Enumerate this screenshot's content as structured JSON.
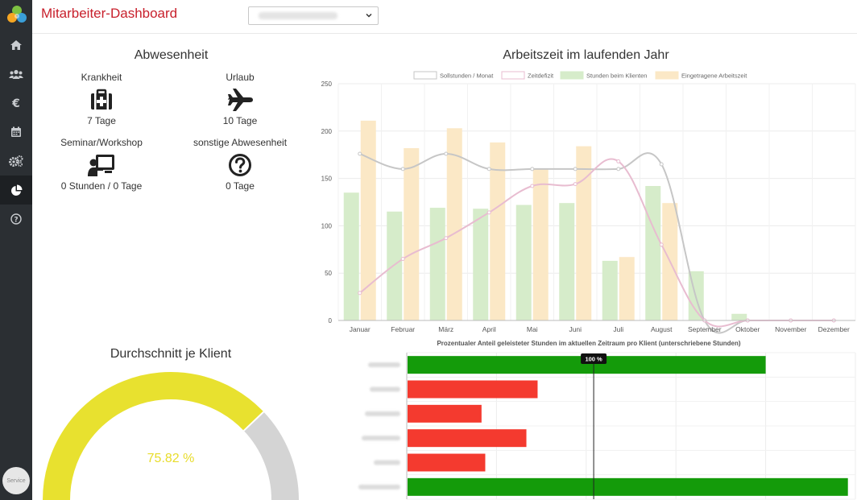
{
  "header": {
    "title": "Mitarbeiter-Dashboard"
  },
  "sidebar": {
    "items": [
      {
        "name": "home-icon"
      },
      {
        "name": "users-icon"
      },
      {
        "name": "euro-icon"
      },
      {
        "name": "calendar-icon"
      },
      {
        "name": "gears-icon"
      },
      {
        "name": "pie-chart-icon",
        "active": true
      },
      {
        "name": "help-icon"
      }
    ],
    "service_label": "Service"
  },
  "absence": {
    "title": "Abwesenheit",
    "items": [
      {
        "label": "Krankheit",
        "value": "7 Tage",
        "icon": "medkit-icon"
      },
      {
        "label": "Urlaub",
        "value": "10 Tage",
        "icon": "plane-icon"
      },
      {
        "label": "Seminar/Workshop",
        "value": "0 Stunden / 0 Tage",
        "icon": "presentation-icon"
      },
      {
        "label": "sonstige Abwesenheit",
        "value": "0 Tage",
        "icon": "question-icon"
      }
    ]
  },
  "average": {
    "title": "Durchschnitt je Klient",
    "value_label": "75.82 %",
    "percent": 75.82,
    "colors": {
      "fill": "#e8e12f",
      "rest": "#d4d4d4",
      "text": "#e8dc2a"
    }
  },
  "chart_data": [
    {
      "type": "bar",
      "title": "Arbeitszeit im laufenden Jahr",
      "categories": [
        "Januar",
        "Februar",
        "März",
        "April",
        "Mai",
        "Juni",
        "Juli",
        "August",
        "September",
        "Oktober",
        "November",
        "Dezember"
      ],
      "ylim": [
        0,
        250
      ],
      "yticks": [
        0,
        50,
        100,
        150,
        200,
        250
      ],
      "legend_position": "top",
      "grid": true,
      "series": [
        {
          "name": "Sollstunden / Monat",
          "kind": "line",
          "color": "#c6c6c6",
          "values": [
            176,
            160,
            176,
            160,
            160,
            160,
            160,
            165,
            0,
            0,
            0,
            0
          ]
        },
        {
          "name": "Zeitdefizit",
          "kind": "line",
          "color": "#e8bcd0",
          "values": [
            29,
            65,
            87,
            114,
            142,
            144,
            168,
            80,
            0,
            0,
            0,
            0
          ]
        },
        {
          "name": "Stunden beim Klienten",
          "kind": "bar",
          "color": "#d6ecca",
          "values": [
            135,
            115,
            119,
            118,
            122,
            124,
            63,
            142,
            52,
            7,
            0,
            0
          ]
        },
        {
          "name": "Eingetragene Arbeitszeit",
          "kind": "bar",
          "color": "#fbe8c6",
          "values": [
            211,
            182,
            203,
            188,
            160,
            184,
            67,
            124,
            0,
            0,
            0,
            0
          ]
        }
      ]
    },
    {
      "type": "bar",
      "orientation": "horizontal",
      "title": "Prozentualer Anteil geleisteter Stunden im aktuellen Zeitraum pro Klient (unterschriebene Stunden)",
      "reference_label": "100 %",
      "reference_value": 100,
      "xlim": [
        0,
        240
      ],
      "values": [
        192,
        70,
        40,
        64,
        42,
        236
      ],
      "colors": [
        "#149b0a",
        "#f43a2f",
        "#f43a2f",
        "#f43a2f",
        "#f43a2f",
        "#149b0a"
      ]
    }
  ]
}
